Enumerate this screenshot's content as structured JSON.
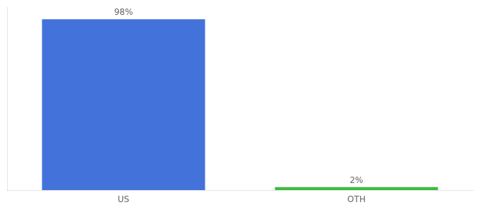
{
  "chart_data": {
    "type": "bar",
    "categories": [
      "US",
      "OTH"
    ],
    "values": [
      98,
      2
    ],
    "value_labels": [
      "98%",
      "2%"
    ],
    "colors": [
      "#4472db",
      "#3dbb3d"
    ],
    "ylim": [
      0,
      105
    ],
    "data_labels": true,
    "tick_labels": "x",
    "grid": false
  }
}
